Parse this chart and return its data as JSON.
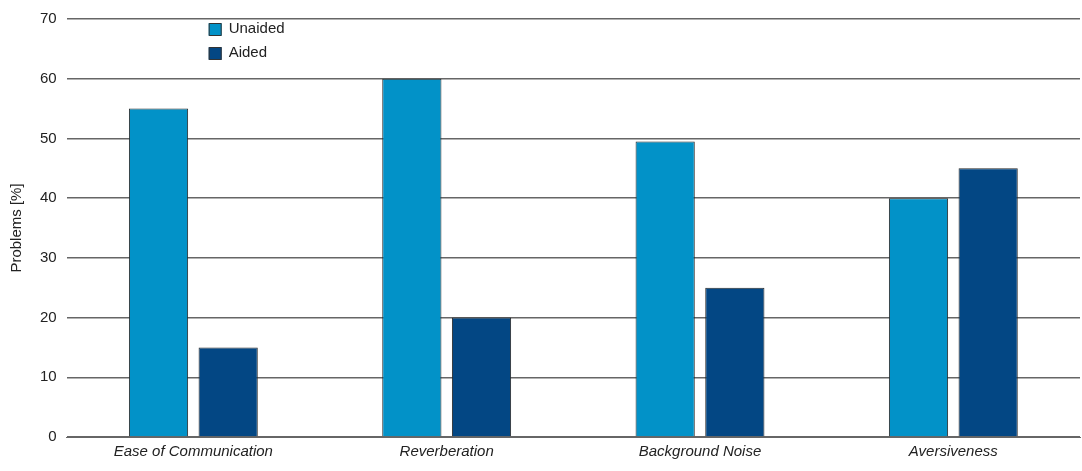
{
  "chart_data": {
    "type": "bar",
    "ylabel": "Problems [%]",
    "categories": [
      "Ease of Communication",
      "Reverberation",
      "Background Noise",
      "Aversiveness"
    ],
    "series": [
      {
        "name": "Unaided",
        "color": "#0292c8",
        "values": [
          55,
          60,
          49.5,
          40
        ]
      },
      {
        "name": "Aided",
        "color": "#034784",
        "values": [
          15,
          20,
          25,
          45
        ]
      }
    ],
    "ylim": [
      0,
      70
    ],
    "yticks": [
      0,
      10,
      20,
      30,
      40,
      50,
      60,
      70
    ],
    "grid": "y",
    "legend": "top left"
  }
}
